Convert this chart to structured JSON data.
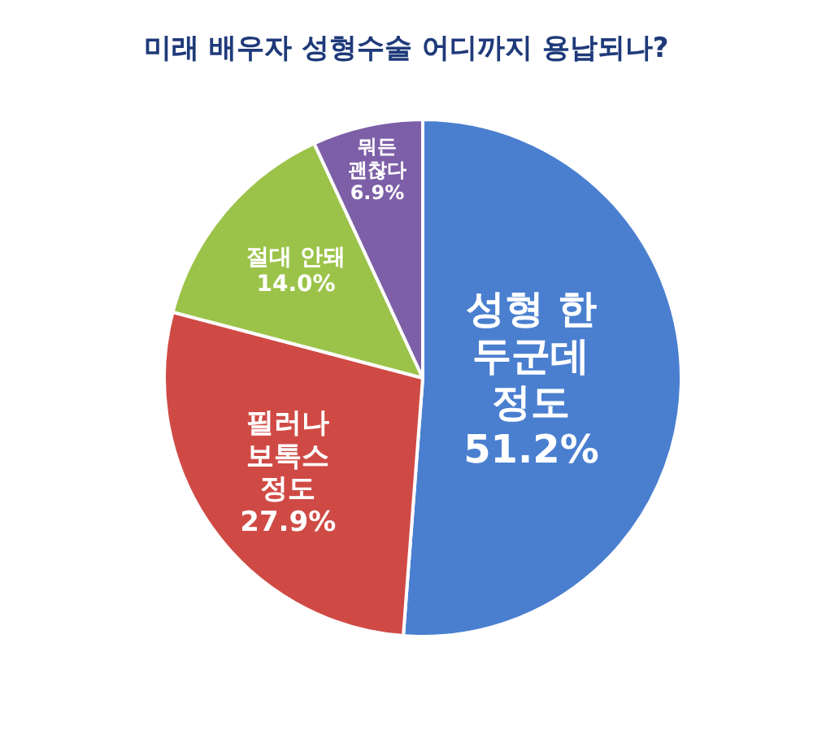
{
  "chart_data": {
    "type": "pie",
    "title": "미래 배우자 성형수술 어디까지 용납되나?",
    "categories": [
      "성형 한 두군데 정도",
      "필러나 보톡스 정도",
      "절대 안돼",
      "뭐든 괜찮다"
    ],
    "values": [
      51.2,
      27.9,
      14.0,
      6.9
    ],
    "colors": [
      "#4a7fd0",
      "#d04a45",
      "#9bc349",
      "#7d5fa8"
    ],
    "value_labels": [
      "51.2%",
      "27.9%",
      "14.0%",
      "6.9%"
    ],
    "legend": false
  }
}
